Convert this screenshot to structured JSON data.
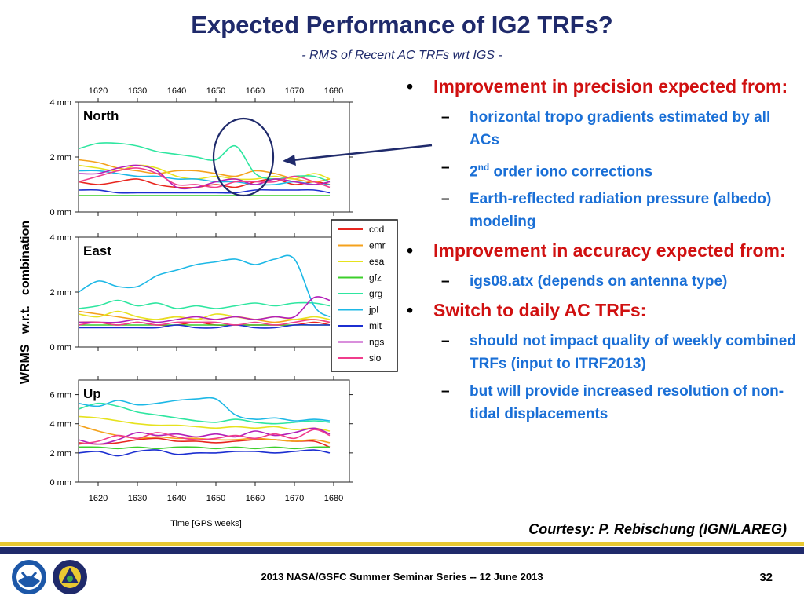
{
  "slide": {
    "title": "Expected Performance of IG2 TRFs?",
    "subtitle": "- RMS of Recent AC TRFs wrt IGS -",
    "courtesy": "Courtesy: P. Rebischung (IGN/LAREG)",
    "footer": "2013 NASA/GSFC Summer Seminar Series -- 12 June 2013",
    "page_number": "32",
    "logos": [
      {
        "icon": "noaa-logo-icon"
      },
      {
        "icon": "national-geodetic-survey-logo-icon"
      }
    ]
  },
  "bullets": [
    {
      "level": 1,
      "text": "Improvement in precision expected from:"
    },
    {
      "level": 2,
      "text": "horizontal tropo gradients estimated by all ACs"
    },
    {
      "level": 2,
      "text": "order iono corrections",
      "prefix": "2",
      "superscript": "nd"
    },
    {
      "level": 2,
      "text": "Earth-reflected radiation pressure (albedo) modeling"
    },
    {
      "level": 1,
      "text": "Improvement in accuracy expected from:"
    },
    {
      "level": 2,
      "text": "igs08.atx (depends on antenna type)"
    },
    {
      "level": 1,
      "text": "Switch to daily AC TRFs:"
    },
    {
      "level": 2,
      "text": "should not impact quality of weekly combined TRFs (input to ITRF2013)"
    },
    {
      "level": 2,
      "text": "but will provide increased resolution of non-tidal displacements"
    }
  ],
  "colors": {
    "title": "#1f2a6b",
    "bullet_level1": "#d01010",
    "bullet_level2": "#1a6fd6",
    "highlight": "#1f2a6b",
    "cod": "#e8261f",
    "emr": "#f4a21c",
    "esa": "#e6e21e",
    "gfz": "#3ccf2b",
    "grg": "#2ee6a0",
    "jpl": "#1db8e6",
    "mit": "#1c2fd1",
    "ngs": "#b31fb8",
    "sio": "#f03c8c"
  },
  "chart_data": {
    "type": "line",
    "xlabel": "Time [GPS weeks]",
    "ylabel": "WRMS   w.r.t.   combination",
    "x_ticks": [
      1620,
      1630,
      1640,
      1650,
      1660,
      1670,
      1680
    ],
    "xlim": [
      1615,
      1684
    ],
    "grid": false,
    "legend": {
      "position": "right",
      "entries": [
        "cod",
        "emr",
        "esa",
        "gfz",
        "grg",
        "jpl",
        "mit",
        "ngs",
        "sio"
      ]
    },
    "annotation": "ellipse around North panel near weeks 1652-1662 with arrow from text",
    "x": [
      1615,
      1620,
      1625,
      1630,
      1635,
      1640,
      1645,
      1650,
      1655,
      1660,
      1665,
      1670,
      1675,
      1679
    ],
    "panels": [
      {
        "name": "North",
        "unit": "mm",
        "ylim": [
          0,
          4
        ],
        "y_ticks": [
          {
            "v": 0,
            "label": "0 mm"
          },
          {
            "v": 2,
            "label": "2 mm"
          },
          {
            "v": 4,
            "label": "4 mm"
          }
        ],
        "series": [
          {
            "name": "cod",
            "values": [
              1.1,
              1.0,
              1.1,
              1.2,
              1.0,
              0.9,
              0.9,
              1.0,
              0.9,
              1.1,
              1.2,
              1.0,
              1.1,
              1.0
            ]
          },
          {
            "name": "emr",
            "values": [
              1.9,
              1.8,
              1.6,
              1.5,
              1.4,
              1.5,
              1.5,
              1.4,
              1.3,
              1.5,
              1.4,
              1.2,
              1.1,
              1.2
            ]
          },
          {
            "name": "esa",
            "values": [
              1.7,
              1.6,
              1.5,
              1.7,
              1.6,
              1.3,
              1.2,
              1.3,
              1.2,
              1.2,
              1.3,
              1.2,
              1.4,
              1.2
            ]
          },
          {
            "name": "gfz",
            "values": [
              0.6,
              0.6,
              0.6,
              0.6,
              0.6,
              0.6,
              0.6,
              0.6,
              0.6,
              0.6,
              0.6,
              0.6,
              0.6,
              0.6
            ]
          },
          {
            "name": "grg",
            "values": [
              2.3,
              2.5,
              2.5,
              2.4,
              2.2,
              2.1,
              2.0,
              1.9,
              2.4,
              1.4,
              1.2,
              1.3,
              1.3,
              1.1
            ]
          },
          {
            "name": "jpl",
            "values": [
              1.5,
              1.5,
              1.4,
              1.3,
              1.3,
              1.2,
              1.2,
              1.1,
              1.1,
              1.0,
              1.0,
              1.1,
              1.0,
              1.0
            ]
          },
          {
            "name": "mit",
            "values": [
              0.8,
              0.8,
              0.7,
              0.7,
              0.7,
              0.7,
              0.7,
              0.7,
              0.7,
              0.8,
              0.8,
              0.8,
              0.8,
              0.7
            ]
          },
          {
            "name": "ngs",
            "values": [
              1.4,
              1.4,
              1.6,
              1.7,
              1.5,
              0.9,
              0.9,
              1.1,
              1.2,
              1.0,
              1.2,
              1.1,
              1.0,
              1.1
            ]
          },
          {
            "name": "sio",
            "values": [
              1.1,
              1.3,
              1.5,
              1.6,
              1.4,
              1.0,
              1.0,
              0.9,
              1.1,
              1.1,
              1.1,
              1.3,
              1.1,
              0.9
            ]
          }
        ]
      },
      {
        "name": "East",
        "unit": "mm",
        "ylim": [
          0,
          4
        ],
        "y_ticks": [
          {
            "v": 0,
            "label": "0 mm"
          },
          {
            "v": 2,
            "label": "2 mm"
          },
          {
            "v": 4,
            "label": "4 mm"
          }
        ],
        "series": [
          {
            "name": "cod",
            "values": [
              0.9,
              0.9,
              0.8,
              0.9,
              0.8,
              0.8,
              0.9,
              0.8,
              0.8,
              0.8,
              0.8,
              0.8,
              0.9,
              0.8
            ]
          },
          {
            "name": "emr",
            "values": [
              1.3,
              1.2,
              1.1,
              1.0,
              1.0,
              1.1,
              1.0,
              1.0,
              1.1,
              1.0,
              0.9,
              1.0,
              1.0,
              0.9
            ]
          },
          {
            "name": "esa",
            "values": [
              1.2,
              1.1,
              1.3,
              1.1,
              1.0,
              1.1,
              1.0,
              1.2,
              1.1,
              1.0,
              1.1,
              1.0,
              1.1,
              1.0
            ]
          },
          {
            "name": "gfz",
            "values": [
              0.8,
              0.8,
              0.8,
              0.8,
              0.8,
              0.8,
              0.8,
              0.8,
              0.8,
              0.8,
              0.8,
              0.8,
              0.8,
              0.8
            ]
          },
          {
            "name": "grg",
            "values": [
              1.4,
              1.5,
              1.7,
              1.5,
              1.6,
              1.4,
              1.5,
              1.4,
              1.5,
              1.6,
              1.5,
              1.6,
              1.6,
              1.5
            ]
          },
          {
            "name": "jpl",
            "values": [
              2.0,
              2.4,
              2.2,
              2.2,
              2.6,
              2.8,
              3.0,
              3.1,
              3.2,
              3.0,
              3.2,
              3.2,
              1.5,
              1.1
            ]
          },
          {
            "name": "mit",
            "values": [
              0.7,
              0.7,
              0.7,
              0.7,
              0.7,
              0.8,
              0.7,
              0.7,
              0.8,
              0.7,
              0.7,
              0.8,
              0.8,
              0.8
            ]
          },
          {
            "name": "ngs",
            "values": [
              0.9,
              0.9,
              0.9,
              1.0,
              0.9,
              1.0,
              1.1,
              1.0,
              1.1,
              1.0,
              1.1,
              1.1,
              1.8,
              1.7
            ]
          },
          {
            "name": "sio",
            "values": [
              0.8,
              0.9,
              0.8,
              0.9,
              0.8,
              0.9,
              0.9,
              0.9,
              0.8,
              0.9,
              0.8,
              0.9,
              1.0,
              0.9
            ]
          }
        ]
      },
      {
        "name": "Up",
        "unit": "mm",
        "ylim": [
          0,
          7
        ],
        "y_ticks": [
          {
            "v": 0,
            "label": "0 mm"
          },
          {
            "v": 2,
            "label": "2 mm"
          },
          {
            "v": 4,
            "label": "4 mm"
          },
          {
            "v": 6,
            "label": "6 mm"
          }
        ],
        "series": [
          {
            "name": "cod",
            "values": [
              2.7,
              2.6,
              2.7,
              2.9,
              3.0,
              2.8,
              2.8,
              2.7,
              2.8,
              2.9,
              2.9,
              2.8,
              2.8,
              2.4
            ]
          },
          {
            "name": "emr",
            "values": [
              3.9,
              3.5,
              3.2,
              3.0,
              3.1,
              3.0,
              3.0,
              2.9,
              2.9,
              3.0,
              2.9,
              2.8,
              2.9,
              2.7
            ]
          },
          {
            "name": "esa",
            "values": [
              4.5,
              4.4,
              4.2,
              4.0,
              3.9,
              3.9,
              3.8,
              3.7,
              3.8,
              3.7,
              3.8,
              3.6,
              3.7,
              3.5
            ]
          },
          {
            "name": "gfz",
            "values": [
              2.4,
              2.4,
              2.3,
              2.4,
              2.3,
              2.4,
              2.4,
              2.3,
              2.4,
              2.3,
              2.4,
              2.3,
              2.4,
              2.4
            ]
          },
          {
            "name": "grg",
            "values": [
              5.0,
              5.4,
              5.2,
              4.8,
              4.6,
              4.4,
              4.2,
              4.1,
              4.3,
              4.1,
              4.0,
              4.1,
              4.2,
              4.1
            ]
          },
          {
            "name": "jpl",
            "values": [
              5.4,
              5.2,
              5.6,
              5.3,
              5.4,
              5.6,
              5.7,
              5.7,
              4.6,
              4.3,
              4.4,
              4.2,
              4.3,
              4.2
            ]
          },
          {
            "name": "mit",
            "values": [
              2.0,
              2.1,
              1.8,
              2.1,
              2.2,
              1.9,
              2.0,
              2.0,
              2.1,
              2.1,
              2.0,
              2.1,
              2.2,
              2.0
            ]
          },
          {
            "name": "ngs",
            "values": [
              2.9,
              2.6,
              2.9,
              3.4,
              3.2,
              3.3,
              3.1,
              3.3,
              3.1,
              3.5,
              3.2,
              3.4,
              3.7,
              3.3
            ]
          },
          {
            "name": "sio",
            "values": [
              2.6,
              2.8,
              3.2,
              3.0,
              3.4,
              3.1,
              2.9,
              3.0,
              3.2,
              3.0,
              3.3,
              3.0,
              3.6,
              3.2
            ]
          }
        ]
      }
    ]
  }
}
